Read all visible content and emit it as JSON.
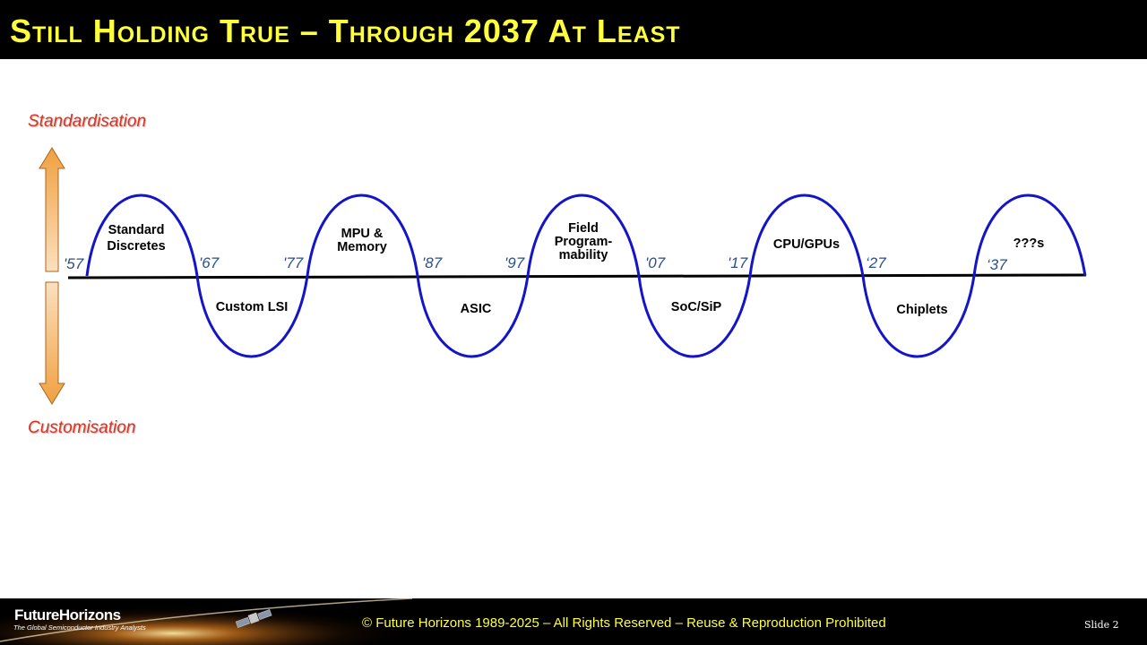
{
  "header": {
    "title": "Still Holding True – Through 2037 At Least"
  },
  "axis": {
    "top_label": "Standardisation",
    "bottom_label": "Customisation"
  },
  "colors": {
    "wave": "#1414c8",
    "year": "#2e4f86",
    "axis_label": "#e0321f",
    "title": "#ffff3d",
    "arrow": "#f0a040"
  },
  "years": [
    "'57",
    "'67",
    "'77",
    "'87",
    "'97",
    "'07",
    "'17",
    "‘27",
    "‘37"
  ],
  "phases": {
    "standard_discretes": [
      "Standard",
      "Discretes"
    ],
    "custom_lsi": "Custom LSI",
    "mpu_memory": [
      "MPU &",
      "Memory"
    ],
    "asic": "ASIC",
    "field_programmability": [
      "Field",
      "Program-",
      "mability"
    ],
    "soc_sip": "SoC/SiP",
    "cpu_gpus": "CPU/GPUs",
    "chiplets": "Chiplets",
    "unknown": "???s"
  },
  "footer": {
    "brand": "FutureHorizons",
    "tagline": "The Global Semiconductor Industry Analysts",
    "copyright": "© Future Horizons 1989-2025 – All Rights Reserved – Reuse & Reproduction Prohibited",
    "slide": "Slide 2"
  }
}
